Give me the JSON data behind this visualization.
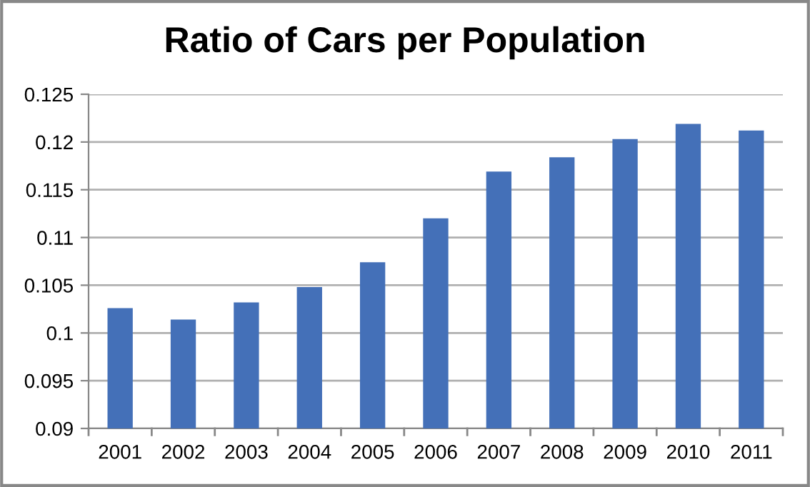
{
  "chart_data": {
    "type": "bar",
    "title": "Ratio of Cars per Population",
    "categories": [
      "2001",
      "2002",
      "2003",
      "2004",
      "2005",
      "2006",
      "2007",
      "2008",
      "2009",
      "2010",
      "2011"
    ],
    "values": [
      0.1026,
      0.1014,
      0.1032,
      0.1048,
      0.1074,
      0.112,
      0.1169,
      0.1184,
      0.1203,
      0.1219,
      0.1212
    ],
    "color": "#4470b8",
    "ylim": [
      0.09,
      0.125
    ],
    "yticks": [
      {
        "value": 0.09,
        "label": "0.09"
      },
      {
        "value": 0.095,
        "label": "0.095"
      },
      {
        "value": 0.1,
        "label": "0.1"
      },
      {
        "value": 0.105,
        "label": "0.105"
      },
      {
        "value": 0.11,
        "label": "0.11"
      },
      {
        "value": 0.115,
        "label": "0.115"
      },
      {
        "value": 0.12,
        "label": "0.12"
      },
      {
        "value": 0.125,
        "label": "0.125"
      }
    ],
    "grid": "y",
    "legend": false
  }
}
